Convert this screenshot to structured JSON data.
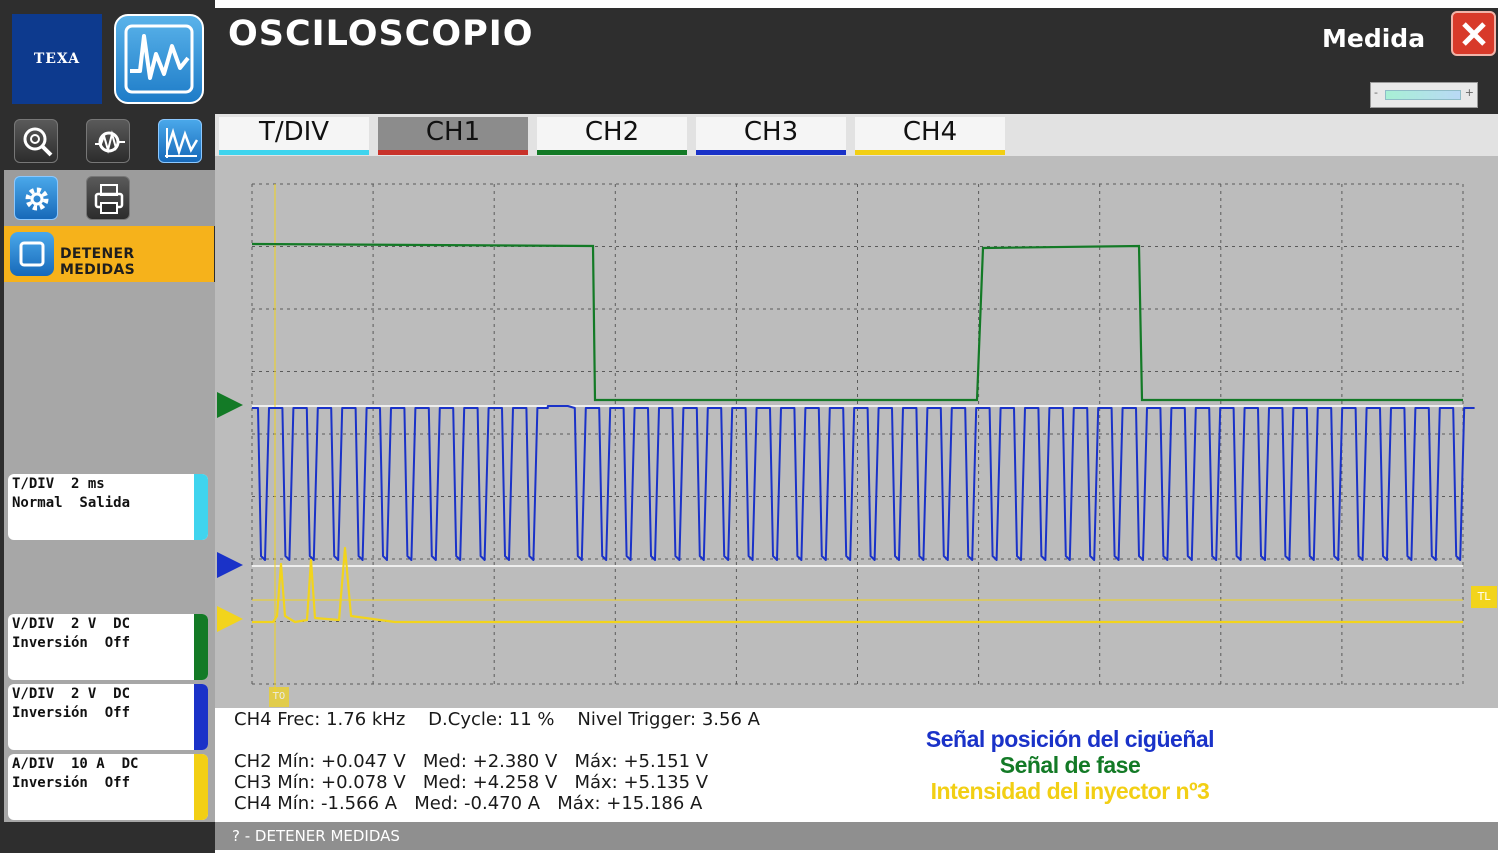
{
  "brand": {
    "logo_text": "TEXA"
  },
  "header": {
    "title": "OSCILOSCOPIO",
    "mode_label": "Medida"
  },
  "toolbar": {
    "buttons": [
      "zoom-icon",
      "probe-icon",
      "waveform-analysis-icon",
      "settings-gear-icon",
      "printer-icon"
    ],
    "stop_label": "DETENER MEDIDAS"
  },
  "side_panels": [
    {
      "line1": "T/DIV  2 ms",
      "line2": "Normal  Salida",
      "color": "#3fd4ee"
    },
    {
      "line1": "V/DIV  2 V  DC",
      "line2": "Inversión  Off",
      "color": "#137a26"
    },
    {
      "line1": "V/DIV  2 V  DC",
      "line2": "Inversión  Off",
      "color": "#1a32c8"
    },
    {
      "line1": "A/DIV  10 A  DC",
      "line2": "Inversión  Off",
      "color": "#f2cf14"
    }
  ],
  "tabs": [
    {
      "label": "T/DIV",
      "color": "#3fd4ee"
    },
    {
      "label": "CH1",
      "color": "#c8322a",
      "active": true
    },
    {
      "label": "CH2",
      "color": "#137a26"
    },
    {
      "label": "CH3",
      "color": "#1a32c8"
    },
    {
      "label": "CH4",
      "color": "#f2cf14"
    }
  ],
  "scope": {
    "trigger_marker_label": "TL",
    "time_marker_label": "T0",
    "channel_colors": {
      "ch2": "#137a26",
      "ch3": "#1a32c8",
      "ch4": "#f2d41c"
    }
  },
  "measurements": {
    "line0": "CH4 Frec: 1.76 kHz    D.Cycle: 11 %    Nivel Trigger: 3.56 A",
    "ch2": "CH2 Mín: +0.047 V   Med: +2.380 V   Máx: +5.151 V",
    "ch3": "CH3 Mín: +0.078 V   Med: +4.258 V   Máx: +5.135 V",
    "ch4": "CH4 Mín: -1.566 A   Med: -0.470 A   Máx: +15.186 A"
  },
  "legend": {
    "crank": {
      "text": "Señal posición del cigüeñal",
      "color": "#1a32c8"
    },
    "phase": {
      "text": "Señal de fase",
      "color": "#137a26"
    },
    "injector": {
      "text": "Intensidad del inyector nº3",
      "color": "#f2cf14"
    }
  },
  "status": {
    "text": "? - DETENER MEDIDAS"
  }
}
